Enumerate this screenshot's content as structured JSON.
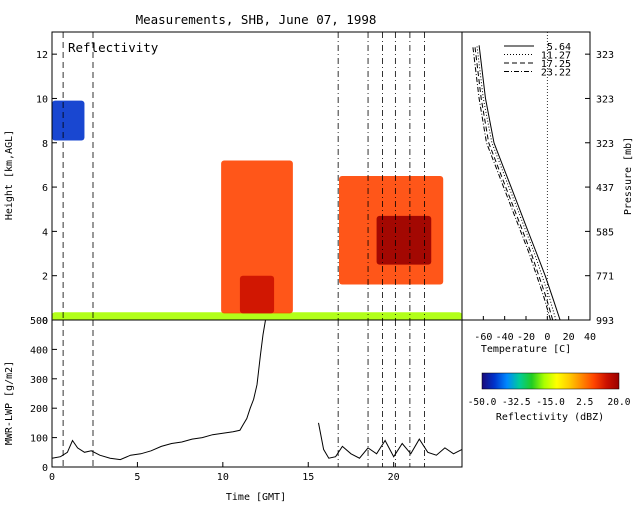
{
  "figure": {
    "title": "Measurements, SHB, June 07, 1998"
  },
  "chart_data": [
    {
      "type": "heatmap",
      "panel": "reflectivity",
      "label": "Reflectivity",
      "xlabel": "",
      "ylabel": "Height [km,AGL]",
      "xlim": [
        0,
        24
      ],
      "ylim": [
        0,
        13
      ],
      "yticks": [
        0,
        2,
        4,
        6,
        8,
        10,
        12
      ],
      "ytick_labels": [
        "0",
        "2",
        "4",
        "6",
        "8",
        "10",
        "12"
      ],
      "dashed_lines_x": [
        0.65,
        2.4
      ],
      "dashdot_lines_x": [
        16.75,
        18.5,
        19.35,
        20.1,
        20.95,
        21.8
      ],
      "echoes": [
        {
          "name": "surface-layer",
          "x0": 0.0,
          "x1": 24.0,
          "y0": 0.0,
          "y1": 0.35,
          "dbz": -20
        },
        {
          "name": "high-cirrus-early",
          "x0": 0.0,
          "x1": 1.9,
          "y0": 8.1,
          "y1": 9.9,
          "dbz": -45
        },
        {
          "name": "main-convective-tower",
          "x0": 9.9,
          "x1": 14.1,
          "y0": 0.3,
          "y1": 7.2,
          "dbz": 8
        },
        {
          "name": "convective-core",
          "x0": 11.0,
          "x1": 13.0,
          "y0": 0.3,
          "y1": 2.0,
          "dbz": 16
        },
        {
          "name": "late-storm-cluster",
          "x0": 16.8,
          "x1": 22.9,
          "y0": 1.6,
          "y1": 6.5,
          "dbz": 10
        },
        {
          "name": "late-storm-core",
          "x0": 19.0,
          "x1": 22.2,
          "y0": 2.5,
          "y1": 4.7,
          "dbz": 17
        }
      ],
      "colorbar": {
        "label": "Reflectivity (dBZ)",
        "range": [
          -50,
          20
        ],
        "ticks": [
          -50.0,
          -32.5,
          -15.0,
          2.5,
          20.0
        ],
        "tick_labels": [
          "-50.0",
          "-32.5",
          "-15.0",
          "2.5",
          "20.0"
        ],
        "colors": [
          "#1a0a7a",
          "#0033cc",
          "#0088ff",
          "#00cc99",
          "#22cc22",
          "#aaff00",
          "#ffff00",
          "#ffcc00",
          "#ff8800",
          "#ff4400",
          "#cc1100",
          "#990000"
        ]
      }
    },
    {
      "type": "line",
      "panel": "lwp",
      "xlabel": "Time [GMT]",
      "ylabel": "MWR-LWP [g/m2]",
      "xlim": [
        0,
        24
      ],
      "ylim": [
        0,
        500
      ],
      "xticks": [
        0,
        5,
        10,
        15,
        20
      ],
      "xtick_labels": [
        "0",
        "5",
        "10",
        "15",
        "20"
      ],
      "yticks": [
        0,
        100,
        200,
        300,
        400,
        500
      ],
      "ytick_labels": [
        "0",
        "100",
        "200",
        "300",
        "400",
        "500"
      ],
      "series": [
        {
          "x": [
            0.0,
            0.5,
            0.9,
            1.2,
            1.5,
            1.9,
            2.3,
            2.8,
            3.4,
            4.0,
            4.6,
            5.2,
            5.8,
            6.4,
            7.0,
            7.6,
            8.2,
            8.8,
            9.4,
            10.0,
            10.6,
            11.0,
            11.2,
            11.4,
            11.6,
            11.8,
            12.0,
            12.1,
            12.2,
            12.35,
            12.5
          ],
          "y": [
            30,
            35,
            50,
            90,
            65,
            50,
            55,
            40,
            30,
            25,
            40,
            45,
            55,
            70,
            80,
            85,
            95,
            100,
            110,
            115,
            120,
            125,
            145,
            165,
            200,
            230,
            280,
            330,
            380,
            450,
            520
          ]
        },
        {
          "x": [
            15.6,
            15.9,
            16.2,
            16.6,
            17.0,
            17.5,
            18.0,
            18.5,
            19.0,
            19.5,
            20.0,
            20.5,
            21.0,
            21.5,
            22.0,
            22.5,
            23.0,
            23.5,
            24.0
          ],
          "y": [
            150,
            60,
            30,
            35,
            70,
            45,
            30,
            65,
            45,
            90,
            35,
            80,
            45,
            95,
            50,
            40,
            65,
            45,
            60
          ]
        }
      ]
    },
    {
      "type": "line",
      "panel": "temperature-profile",
      "xlabel": "Temperature [C]",
      "ylabel": "Pressure [mb]",
      "xlim": [
        -80,
        40
      ],
      "ylim": [
        0,
        13
      ],
      "xticks": [
        -60,
        -40,
        -20,
        0,
        20,
        40
      ],
      "xtick_labels": [
        "-60",
        "-40",
        "-20",
        "0",
        "20",
        "40"
      ],
      "right_axis_ticks_height": [
        0,
        2,
        4,
        6,
        8,
        10,
        12
      ],
      "right_axis_tick_labels": [
        "993",
        "771",
        "585",
        "437",
        "323",
        "323",
        "323"
      ],
      "zero_line_x": 0,
      "legend_placement": "top-right",
      "series": [
        {
          "name": "5.64",
          "style": "solid",
          "x": [
            12,
            5,
            -2,
            -10,
            -18,
            -26,
            -34,
            -42,
            -50,
            -58,
            -64
          ],
          "y": [
            0,
            1,
            2,
            3,
            4,
            5,
            6,
            7,
            8,
            10,
            12.4
          ]
        },
        {
          "name": "11.27",
          "style": "dotted",
          "x": [
            8,
            2,
            -5,
            -12,
            -20,
            -28,
            -36,
            -44,
            -52,
            -60,
            -66
          ],
          "y": [
            0,
            1,
            2,
            3,
            4,
            5,
            6,
            7,
            8,
            10,
            12.4
          ]
        },
        {
          "name": "17.25",
          "style": "dashed",
          "x": [
            5,
            -1,
            -8,
            -15,
            -23,
            -31,
            -39,
            -47,
            -55,
            -62,
            -68
          ],
          "y": [
            0,
            1,
            2,
            3,
            4,
            5,
            6,
            7,
            8,
            10,
            12.4
          ]
        },
        {
          "name": "23.22",
          "style": "dashdot",
          "x": [
            3,
            -3,
            -10,
            -17,
            -25,
            -33,
            -41,
            -49,
            -57,
            -64,
            -70
          ],
          "y": [
            0,
            1,
            2,
            3,
            4,
            5,
            6,
            7,
            8,
            10,
            12.4
          ]
        }
      ]
    }
  ]
}
